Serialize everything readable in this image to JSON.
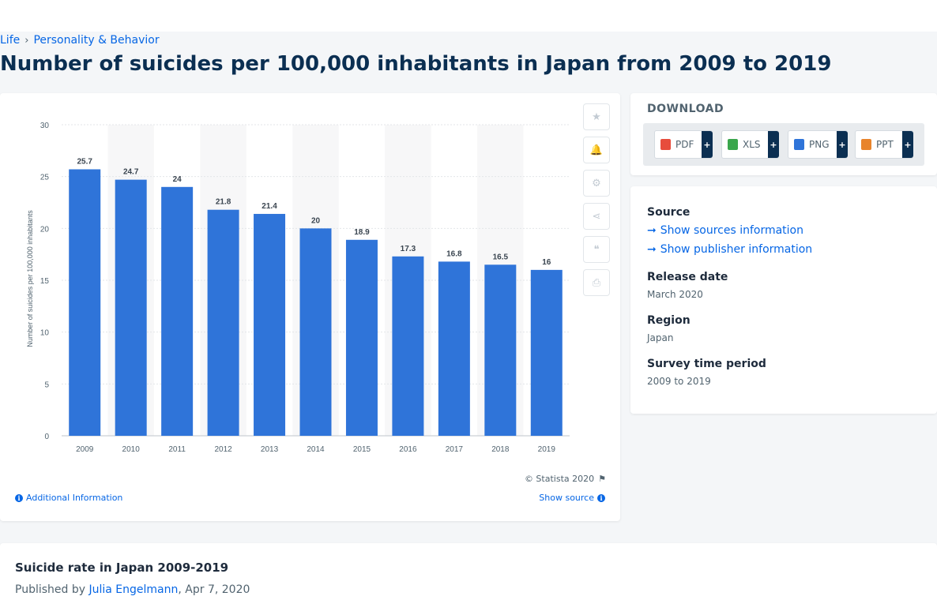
{
  "breadcrumb": {
    "items": [
      "Life",
      "Personality & Behavior"
    ],
    "separator": "›"
  },
  "page_title": "Number of suicides per 100,000 inhabitants in Japan from 2009 to 2019",
  "chart_data": {
    "type": "bar",
    "categories": [
      "2009",
      "2010",
      "2011",
      "2012",
      "2013",
      "2014",
      "2015",
      "2016",
      "2017",
      "2018",
      "2019"
    ],
    "values": [
      25.7,
      24.7,
      24,
      21.8,
      21.4,
      20,
      18.9,
      17.3,
      16.8,
      16.5,
      16
    ],
    "data_labels": [
      "25.7",
      "24.7",
      "24",
      "21.8",
      "21.4",
      "20",
      "18.9",
      "17.3",
      "16.8",
      "16.5",
      "16"
    ],
    "ylabel": "Number of suicides per 100,000 inhabitants",
    "ylim": [
      0,
      30
    ],
    "yticks": [
      0,
      5,
      10,
      15,
      20,
      25,
      30
    ],
    "grid": true,
    "bar_color": "#2f74d9"
  },
  "chart_tools": [
    {
      "icon": "star-icon",
      "glyph": "★"
    },
    {
      "icon": "bell-icon",
      "glyph": "🔔"
    },
    {
      "icon": "gear-icon",
      "glyph": "⚙"
    },
    {
      "icon": "share-icon",
      "glyph": "⋖"
    },
    {
      "icon": "quote-icon",
      "glyph": "❝"
    },
    {
      "icon": "print-icon",
      "glyph": "⎙"
    }
  ],
  "chart_footer": {
    "copyright": "© Statista 2020",
    "additional_info": "Additional Information",
    "show_source": "Show source"
  },
  "download": {
    "title": "DOWNLOAD",
    "formats": [
      {
        "label": "PDF",
        "color": "#e74c3c"
      },
      {
        "label": "XLS",
        "color": "#3aa64c"
      },
      {
        "label": "PNG",
        "color": "#2f74d9"
      },
      {
        "label": "PPT",
        "color": "#e8842c"
      }
    ],
    "plus": "+"
  },
  "meta": {
    "source_label": "Source",
    "show_sources": "Show sources information",
    "show_publisher": "Show publisher information",
    "release_label": "Release date",
    "release_value": "March 2020",
    "region_label": "Region",
    "region_value": "Japan",
    "survey_label": "Survey time period",
    "survey_value": "2009 to 2019"
  },
  "article": {
    "title": "Suicide rate in Japan 2009-2019",
    "published_by": "Published by",
    "author": "Julia Engelmann",
    "date": ", Apr 7, 2020"
  }
}
